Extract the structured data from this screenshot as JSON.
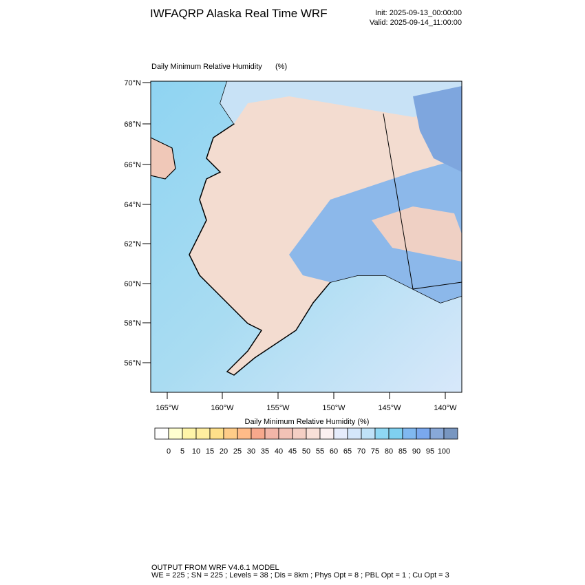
{
  "header": {
    "title": "IWFAQRP Alaska Real Time WRF",
    "init": "Init: 2025-09-13_00:00:00",
    "valid": "Valid: 2025-09-14_11:00:00"
  },
  "map": {
    "subtitle": "Daily Minimum Relative Humidity",
    "units": "(%)",
    "lat_labels": [
      "70°N",
      "68°N",
      "66°N",
      "64°N",
      "62°N",
      "60°N",
      "58°N",
      "56°N"
    ],
    "lon_labels": [
      "165°W",
      "160°W",
      "155°W",
      "150°W",
      "145°W",
      "140°W"
    ]
  },
  "colorbar": {
    "title": "Daily Minimum Relative Humidity  (%)",
    "levels": [
      0,
      5,
      10,
      15,
      20,
      25,
      30,
      35,
      40,
      45,
      50,
      55,
      60,
      65,
      70,
      75,
      80,
      85,
      90,
      95,
      100
    ],
    "colors": [
      "#ffffff",
      "#ffffd0",
      "#fff5a8",
      "#ffeea0",
      "#ffe08a",
      "#ffcc88",
      "#ffbb88",
      "#f7a88c",
      "#f2b6a8",
      "#f2c2b6",
      "#f4cfc4",
      "#f8e0d8",
      "#fbf0f0",
      "#e6ecfb",
      "#d4e6fa",
      "#bfe2f8",
      "#8fd8f4",
      "#7fd0f0",
      "#80b8f0",
      "#7aa8ee",
      "#88a8d8",
      "#7896c0"
    ]
  },
  "footer": {
    "line1": "OUTPUT FROM WRF V4.6.1 MODEL",
    "line2": "WE = 225 ; SN = 225 ; Levels = 38 ; Dis = 8km ; Phys Opt = 8 ; PBL Opt = 1 ; Cu Opt = 3"
  }
}
